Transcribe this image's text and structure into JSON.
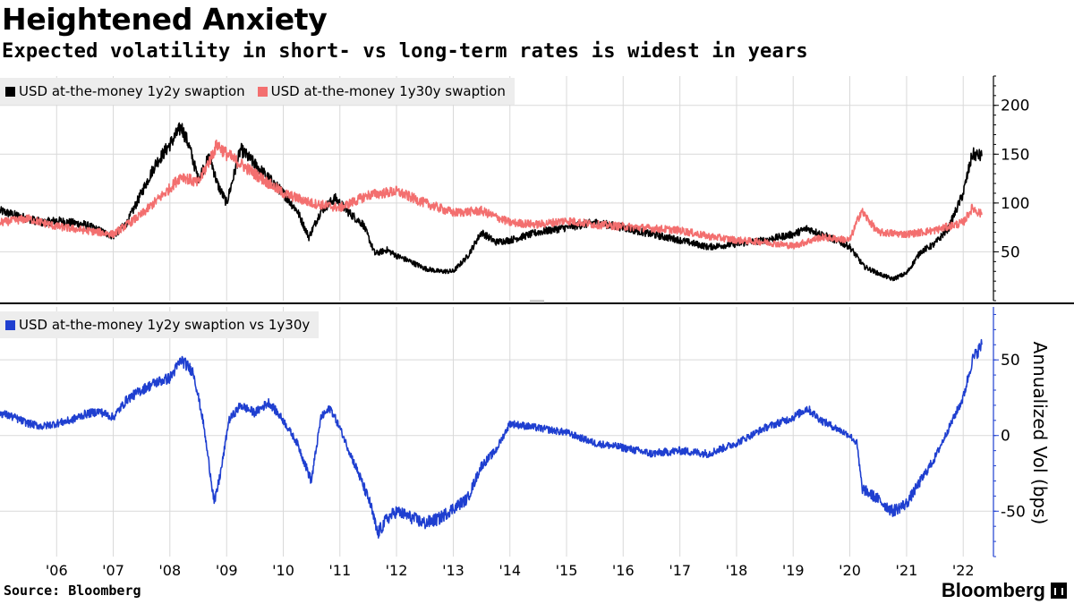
{
  "title": "Heightened Anxiety",
  "subtitle": "Expected volatility in short- vs long-term rates is widest in years",
  "source": "Source: Bloomberg",
  "brand": "Bloomberg",
  "colors": {
    "black_series": "#000000",
    "red_series": "#f36f6f",
    "blue_series": "#1f3fd0",
    "grid": "#d9d9d9"
  },
  "chart_data": [
    {
      "type": "line",
      "panel": "top",
      "ylim": [
        0,
        230
      ],
      "yticks": [
        50,
        100,
        150,
        200
      ],
      "ytick_labels": [
        "50",
        "100",
        "150",
        "200"
      ],
      "grid": true,
      "legend_placement": "top-left",
      "series": [
        {
          "name": "USD at-the-money 1y2y swaption",
          "color": "#000000",
          "points": [
            [
              "2005-01-01",
              92
            ],
            [
              "2005-04-01",
              88
            ],
            [
              "2005-07-01",
              84
            ],
            [
              "2005-10-01",
              80
            ],
            [
              "2006-01-01",
              82
            ],
            [
              "2006-04-01",
              80
            ],
            [
              "2006-07-01",
              78
            ],
            [
              "2006-10-01",
              72
            ],
            [
              "2007-01-01",
              66
            ],
            [
              "2007-04-01",
              80
            ],
            [
              "2007-07-01",
              110
            ],
            [
              "2007-10-01",
              140
            ],
            [
              "2008-01-01",
              160
            ],
            [
              "2008-03-15",
              178
            ],
            [
              "2008-05-01",
              160
            ],
            [
              "2008-07-01",
              125
            ],
            [
              "2008-09-15",
              148
            ],
            [
              "2008-11-01",
              120
            ],
            [
              "2009-01-01",
              100
            ],
            [
              "2009-04-01",
              155
            ],
            [
              "2009-07-01",
              140
            ],
            [
              "2009-10-01",
              125
            ],
            [
              "2010-01-01",
              110
            ],
            [
              "2010-04-01",
              92
            ],
            [
              "2010-06-15",
              65
            ],
            [
              "2010-09-01",
              92
            ],
            [
              "2010-12-01",
              105
            ],
            [
              "2011-03-01",
              90
            ],
            [
              "2011-06-01",
              78
            ],
            [
              "2011-08-15",
              48
            ],
            [
              "2011-11-01",
              52
            ],
            [
              "2012-01-01",
              46
            ],
            [
              "2012-04-01",
              40
            ],
            [
              "2012-07-01",
              33
            ],
            [
              "2012-10-01",
              30
            ],
            [
              "2013-01-01",
              30
            ],
            [
              "2013-04-01",
              45
            ],
            [
              "2013-07-01",
              70
            ],
            [
              "2013-10-01",
              60
            ],
            [
              "2014-01-01",
              62
            ],
            [
              "2014-07-01",
              70
            ],
            [
              "2015-01-01",
              75
            ],
            [
              "2015-07-01",
              80
            ],
            [
              "2016-01-01",
              75
            ],
            [
              "2016-07-01",
              68
            ],
            [
              "2017-01-01",
              62
            ],
            [
              "2017-07-01",
              55
            ],
            [
              "2018-01-01",
              58
            ],
            [
              "2018-07-01",
              62
            ],
            [
              "2019-01-01",
              68
            ],
            [
              "2019-04-01",
              74
            ],
            [
              "2019-07-01",
              68
            ],
            [
              "2019-10-01",
              62
            ],
            [
              "2020-01-01",
              55
            ],
            [
              "2020-04-01",
              35
            ],
            [
              "2020-07-01",
              28
            ],
            [
              "2020-10-01",
              22
            ],
            [
              "2021-01-01",
              28
            ],
            [
              "2021-04-01",
              50
            ],
            [
              "2021-07-01",
              58
            ],
            [
              "2021-10-01",
              75
            ],
            [
              "2022-01-01",
              110
            ],
            [
              "2022-03-01",
              150
            ],
            [
              "2022-05-01",
              148
            ]
          ]
        },
        {
          "name": "USD at-the-money 1y30y swaption",
          "color": "#f36f6f",
          "points": [
            [
              "2005-01-01",
              80
            ],
            [
              "2005-07-01",
              84
            ],
            [
              "2006-01-01",
              76
            ],
            [
              "2006-07-01",
              72
            ],
            [
              "2007-01-01",
              68
            ],
            [
              "2007-07-01",
              88
            ],
            [
              "2008-01-01",
              115
            ],
            [
              "2008-03-15",
              128
            ],
            [
              "2008-07-01",
              120
            ],
            [
              "2008-11-01",
              160
            ],
            [
              "2009-01-01",
              150
            ],
            [
              "2009-07-01",
              130
            ],
            [
              "2010-01-01",
              110
            ],
            [
              "2010-07-01",
              100
            ],
            [
              "2011-01-01",
              95
            ],
            [
              "2011-07-01",
              108
            ],
            [
              "2012-01-01",
              112
            ],
            [
              "2012-07-01",
              100
            ],
            [
              "2013-01-01",
              90
            ],
            [
              "2013-07-01",
              92
            ],
            [
              "2014-01-01",
              80
            ],
            [
              "2014-07-01",
              78
            ],
            [
              "2015-01-01",
              82
            ],
            [
              "2015-07-01",
              78
            ],
            [
              "2016-01-01",
              76
            ],
            [
              "2016-07-01",
              74
            ],
            [
              "2017-01-01",
              72
            ],
            [
              "2017-07-01",
              66
            ],
            [
              "2018-01-01",
              62
            ],
            [
              "2018-07-01",
              60
            ],
            [
              "2019-01-01",
              56
            ],
            [
              "2019-07-01",
              65
            ],
            [
              "2020-01-01",
              62
            ],
            [
              "2020-03-15",
              92
            ],
            [
              "2020-07-01",
              70
            ],
            [
              "2021-01-01",
              68
            ],
            [
              "2021-07-01",
              72
            ],
            [
              "2022-01-01",
              80
            ],
            [
              "2022-03-01",
              95
            ],
            [
              "2022-05-01",
              88
            ]
          ]
        }
      ]
    },
    {
      "type": "line",
      "panel": "bottom",
      "ylim": [
        -80,
        85
      ],
      "yticks": [
        -50,
        0,
        50
      ],
      "ytick_labels": [
        "-50",
        "0",
        "50"
      ],
      "ylabel": "Annualized Vol (bps)",
      "grid": true,
      "legend_placement": "top-left",
      "series": [
        {
          "name": "USD at-the-money 1y2y swaption vs 1y30y",
          "color": "#1f3fd0",
          "points": [
            [
              "2005-01-01",
              15
            ],
            [
              "2005-04-01",
              12
            ],
            [
              "2005-07-01",
              8
            ],
            [
              "2005-10-01",
              6
            ],
            [
              "2006-01-01",
              8
            ],
            [
              "2006-04-01",
              10
            ],
            [
              "2006-07-01",
              14
            ],
            [
              "2006-10-01",
              16
            ],
            [
              "2007-01-01",
              12
            ],
            [
              "2007-04-01",
              24
            ],
            [
              "2007-07-01",
              30
            ],
            [
              "2007-10-01",
              35
            ],
            [
              "2008-01-01",
              38
            ],
            [
              "2008-03-15",
              50
            ],
            [
              "2008-06-01",
              42
            ],
            [
              "2008-08-01",
              10
            ],
            [
              "2008-10-15",
              -45
            ],
            [
              "2008-12-01",
              -20
            ],
            [
              "2009-01-15",
              10
            ],
            [
              "2009-04-01",
              20
            ],
            [
              "2009-07-01",
              15
            ],
            [
              "2009-10-01",
              22
            ],
            [
              "2010-01-01",
              10
            ],
            [
              "2010-04-01",
              -5
            ],
            [
              "2010-07-01",
              -30
            ],
            [
              "2010-09-01",
              12
            ],
            [
              "2010-11-01",
              18
            ],
            [
              "2011-01-01",
              5
            ],
            [
              "2011-03-01",
              -10
            ],
            [
              "2011-05-01",
              -25
            ],
            [
              "2011-07-15",
              -45
            ],
            [
              "2011-09-01",
              -65
            ],
            [
              "2011-11-01",
              -55
            ],
            [
              "2012-01-01",
              -50
            ],
            [
              "2012-07-01",
              -58
            ],
            [
              "2012-10-01",
              -55
            ],
            [
              "2013-01-01",
              -48
            ],
            [
              "2013-04-01",
              -42
            ],
            [
              "2013-07-01",
              -20
            ],
            [
              "2013-10-01",
              -10
            ],
            [
              "2014-01-01",
              8
            ],
            [
              "2014-07-01",
              5
            ],
            [
              "2015-01-01",
              2
            ],
            [
              "2015-07-01",
              -5
            ],
            [
              "2016-01-01",
              -8
            ],
            [
              "2016-07-01",
              -12
            ],
            [
              "2017-01-01",
              -10
            ],
            [
              "2017-07-01",
              -12
            ],
            [
              "2018-01-01",
              -5
            ],
            [
              "2018-07-01",
              5
            ],
            [
              "2019-01-01",
              12
            ],
            [
              "2019-04-01",
              18
            ],
            [
              "2019-07-01",
              10
            ],
            [
              "2019-10-01",
              5
            ],
            [
              "2020-01-01",
              0
            ],
            [
              "2020-02-15",
              -5
            ],
            [
              "2020-03-20",
              -35
            ],
            [
              "2020-07-01",
              -42
            ],
            [
              "2020-10-01",
              -50
            ],
            [
              "2021-01-01",
              -45
            ],
            [
              "2021-04-01",
              -30
            ],
            [
              "2021-07-01",
              -15
            ],
            [
              "2021-10-01",
              5
            ],
            [
              "2022-01-01",
              25
            ],
            [
              "2022-03-01",
              50
            ],
            [
              "2022-05-01",
              60
            ]
          ]
        }
      ]
    }
  ],
  "x_axis": {
    "ticks": [
      {
        "label": "'06",
        "date": "2006-01-01"
      },
      {
        "label": "'07",
        "date": "2007-01-01"
      },
      {
        "label": "'08",
        "date": "2008-01-01"
      },
      {
        "label": "'09",
        "date": "2009-01-01"
      },
      {
        "label": "'10",
        "date": "2010-01-01"
      },
      {
        "label": "'11",
        "date": "2011-01-01"
      },
      {
        "label": "'12",
        "date": "2012-01-01"
      },
      {
        "label": "'13",
        "date": "2013-01-01"
      },
      {
        "label": "'14",
        "date": "2014-01-01"
      },
      {
        "label": "'15",
        "date": "2015-01-01"
      },
      {
        "label": "'16",
        "date": "2016-01-01"
      },
      {
        "label": "'17",
        "date": "2017-01-01"
      },
      {
        "label": "'18",
        "date": "2018-01-01"
      },
      {
        "label": "'19",
        "date": "2019-01-01"
      },
      {
        "label": "'20",
        "date": "2020-01-01"
      },
      {
        "label": "'21",
        "date": "2021-01-01"
      },
      {
        "label": "'22",
        "date": "2022-01-01"
      }
    ],
    "xlim": [
      "2005-01-01",
      "2022-07-15"
    ]
  }
}
